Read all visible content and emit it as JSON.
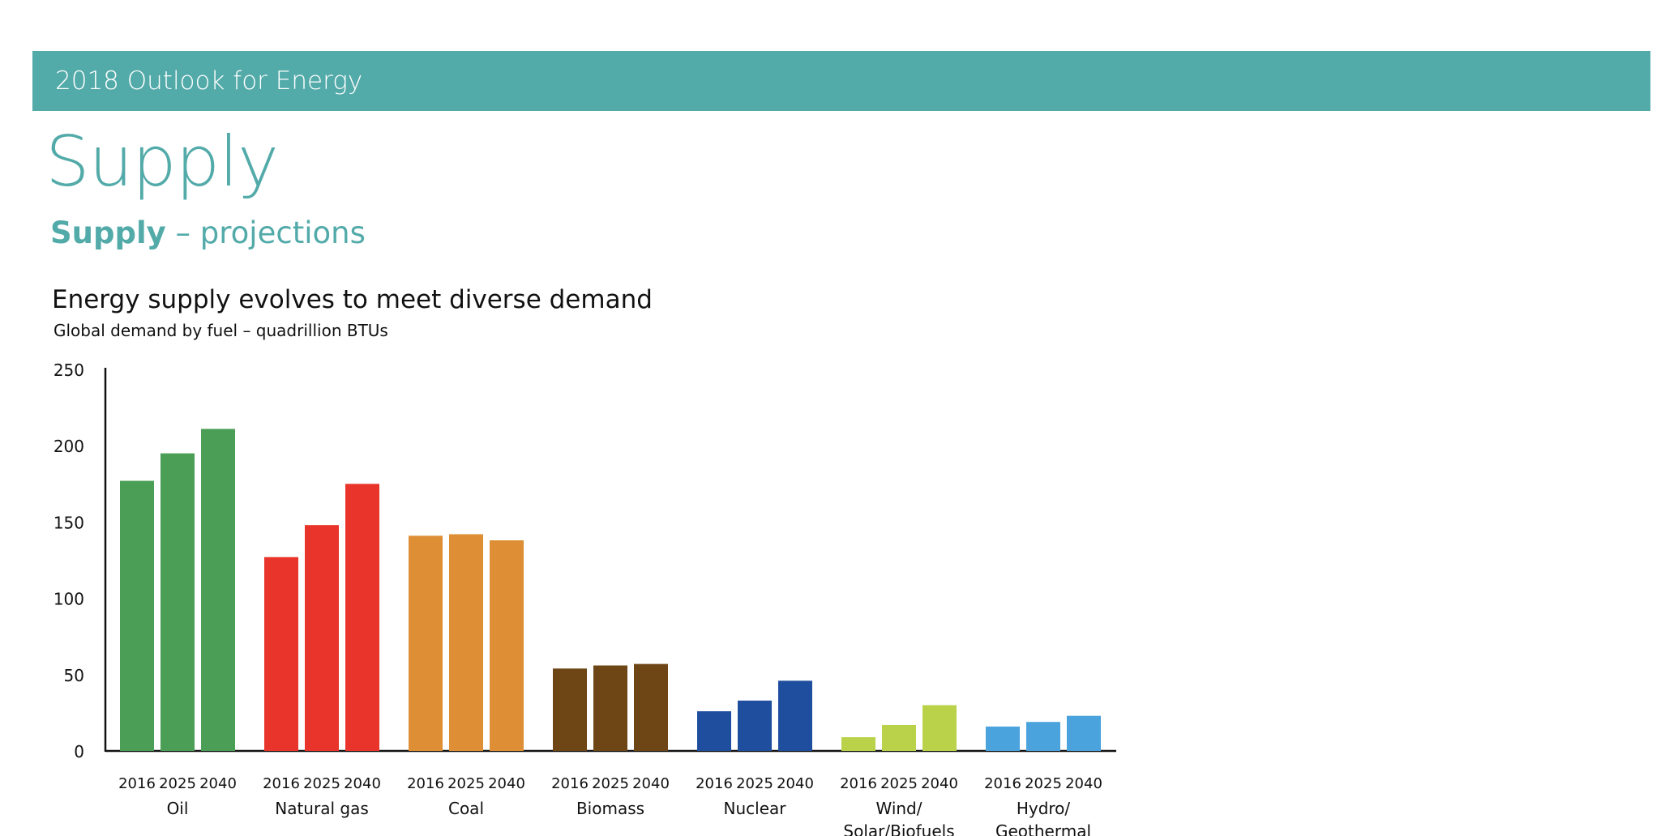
{
  "header": {
    "banner_title": "2018 Outlook for Energy",
    "section_title": "Supply",
    "section_sub_bold": "Supply",
    "section_sub_rest": " – projections"
  },
  "chart_data": {
    "type": "bar",
    "title": "Energy supply evolves to meet diverse demand",
    "subtitle": "Global demand by fuel – quadrillion BTUs",
    "ylim": [
      0,
      250
    ],
    "yticks": [
      0,
      50,
      100,
      150,
      200,
      250
    ],
    "grid": false,
    "years": [
      "2016",
      "2025",
      "2040"
    ],
    "groups": [
      {
        "label": [
          "Oil"
        ],
        "color": "#4a9e56",
        "values": [
          177,
          195,
          211
        ]
      },
      {
        "label": [
          "Natural gas"
        ],
        "color": "#e8342a",
        "values": [
          127,
          148,
          175
        ]
      },
      {
        "label": [
          "Coal"
        ],
        "color": "#de8f35",
        "values": [
          141,
          142,
          138
        ]
      },
      {
        "label": [
          "Biomass"
        ],
        "color": "#6e4515",
        "values": [
          54,
          56,
          57
        ]
      },
      {
        "label": [
          "Nuclear"
        ],
        "color": "#1f4e9f",
        "values": [
          26,
          33,
          46
        ]
      },
      {
        "label": [
          "Wind/",
          "Solar/Biofuels"
        ],
        "color": "#b9d24a",
        "values": [
          9,
          17,
          30
        ]
      },
      {
        "label": [
          "Hydro/",
          "Geothermal"
        ],
        "color": "#4aa3dc",
        "values": [
          16,
          19,
          23
        ]
      }
    ]
  }
}
